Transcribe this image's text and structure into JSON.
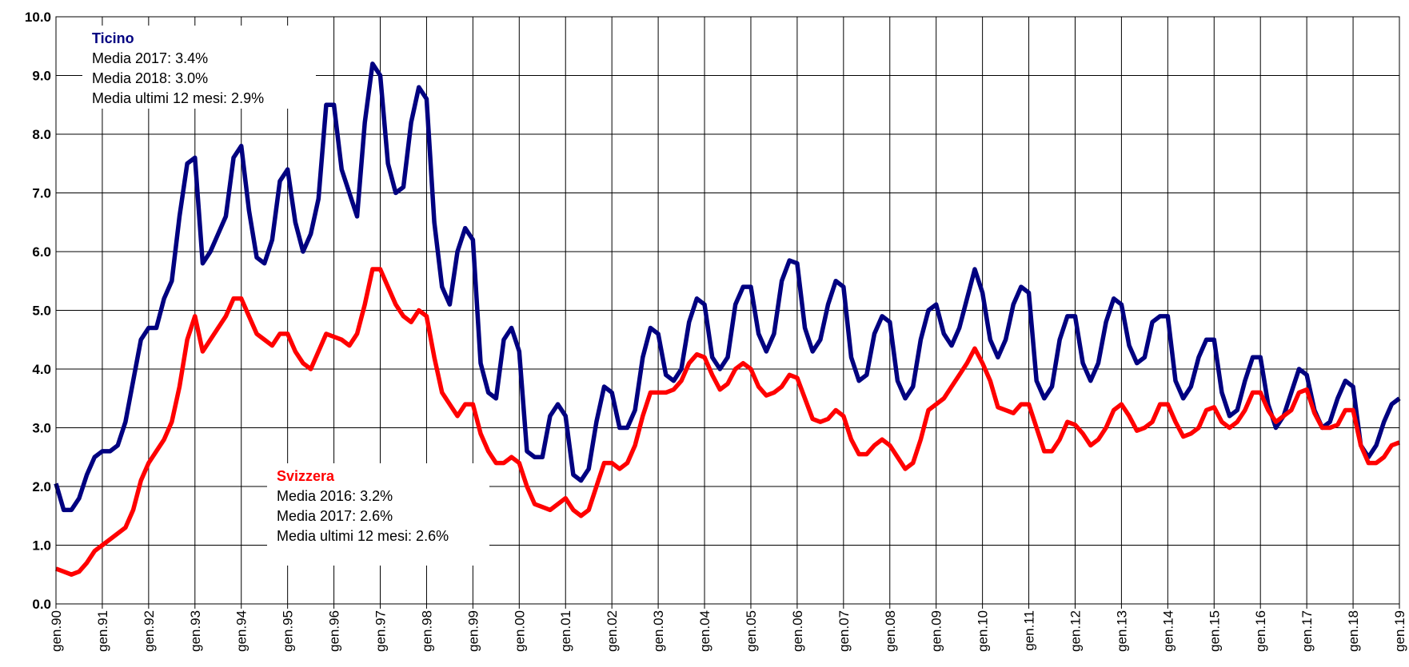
{
  "chart_data": {
    "type": "line",
    "categories": [
      "gen.90",
      null,
      null,
      null,
      null,
      null,
      "gen.91",
      null,
      null,
      null,
      null,
      null,
      "gen.92",
      null,
      null,
      null,
      null,
      null,
      "gen.93",
      null,
      null,
      null,
      null,
      null,
      "gen.94",
      null,
      null,
      null,
      null,
      null,
      "gen.95",
      null,
      null,
      null,
      null,
      null,
      "gen.96",
      null,
      null,
      null,
      null,
      null,
      "gen.97",
      null,
      null,
      null,
      null,
      null,
      "gen.98",
      null,
      null,
      null,
      null,
      null,
      "gen.99",
      null,
      null,
      null,
      null,
      null,
      "gen.00",
      null,
      null,
      null,
      null,
      null,
      "gen.01",
      null,
      null,
      null,
      null,
      null,
      "gen.02",
      null,
      null,
      null,
      null,
      null,
      "gen.03",
      null,
      null,
      null,
      null,
      null,
      "gen.04",
      null,
      null,
      null,
      null,
      null,
      "gen.05",
      null,
      null,
      null,
      null,
      null,
      "gen.06",
      null,
      null,
      null,
      null,
      null,
      "gen.07",
      null,
      null,
      null,
      null,
      null,
      "gen.08",
      null,
      null,
      null,
      null,
      null,
      "gen.09",
      null,
      null,
      null,
      null,
      null,
      "gen.10",
      null,
      null,
      null,
      null,
      null,
      "gen.11",
      null,
      null,
      null,
      null,
      null,
      "gen.12",
      null,
      null,
      null,
      null,
      null,
      "gen.13",
      null,
      null,
      null,
      null,
      null,
      "gen.14",
      null,
      null,
      null,
      null,
      null,
      "gen.15",
      null,
      null,
      null,
      null,
      null,
      "gen.16",
      null,
      null,
      null,
      null,
      null,
      "gen.17",
      null,
      null,
      null,
      null,
      null,
      "gen.18",
      null,
      null,
      null,
      null,
      null,
      "gen.19"
    ],
    "series": [
      {
        "name": "Ticino",
        "color": "#000080",
        "values": [
          2.05,
          1.6,
          1.6,
          1.8,
          2.2,
          2.5,
          2.6,
          2.6,
          2.7,
          3.1,
          3.8,
          4.5,
          4.7,
          4.7,
          5.2,
          5.5,
          6.6,
          7.5,
          7.6,
          5.8,
          6.0,
          6.3,
          6.6,
          7.6,
          7.8,
          6.7,
          5.9,
          5.8,
          6.2,
          7.2,
          7.4,
          6.5,
          6.0,
          6.3,
          6.9,
          8.5,
          8.5,
          7.4,
          7.0,
          6.6,
          8.2,
          9.2,
          9.0,
          7.5,
          7.0,
          7.1,
          8.2,
          8.8,
          8.6,
          6.5,
          5.4,
          5.1,
          6.0,
          6.4,
          6.2,
          4.1,
          3.6,
          3.5,
          4.5,
          4.7,
          4.3,
          2.6,
          2.5,
          2.5,
          3.2,
          3.4,
          3.2,
          2.2,
          2.1,
          2.3,
          3.1,
          3.7,
          3.6,
          3.0,
          3.0,
          3.3,
          4.2,
          4.7,
          4.6,
          3.9,
          3.8,
          4.0,
          4.8,
          5.2,
          5.1,
          4.2,
          4.0,
          4.2,
          5.1,
          5.4,
          5.4,
          4.6,
          4.3,
          4.6,
          5.5,
          5.85,
          5.8,
          4.7,
          4.3,
          4.5,
          5.1,
          5.5,
          5.4,
          4.2,
          3.8,
          3.9,
          4.6,
          4.9,
          4.8,
          3.8,
          3.5,
          3.7,
          4.5,
          5.0,
          5.1,
          4.6,
          4.4,
          4.7,
          5.2,
          5.7,
          5.3,
          4.5,
          4.2,
          4.5,
          5.1,
          5.4,
          5.3,
          3.8,
          3.5,
          3.7,
          4.5,
          4.9,
          4.9,
          4.1,
          3.8,
          4.1,
          4.8,
          5.2,
          5.1,
          4.4,
          4.1,
          4.2,
          4.8,
          4.9,
          4.9,
          3.8,
          3.5,
          3.7,
          4.2,
          4.5,
          4.5,
          3.6,
          3.2,
          3.3,
          3.8,
          4.2,
          4.2,
          3.4,
          3.0,
          3.2,
          3.6,
          4.0,
          3.9,
          3.3,
          3.0,
          3.1,
          3.5,
          3.8,
          3.7,
          2.7,
          2.5,
          2.7,
          3.1,
          3.4,
          3.5
        ]
      },
      {
        "name": "Svizzera",
        "color": "#ff0000",
        "values": [
          0.6,
          0.55,
          0.5,
          0.55,
          0.7,
          0.9,
          1.0,
          1.1,
          1.2,
          1.3,
          1.6,
          2.1,
          2.4,
          2.6,
          2.8,
          3.1,
          3.7,
          4.5,
          4.9,
          4.3,
          4.5,
          4.7,
          4.9,
          5.2,
          5.2,
          4.9,
          4.6,
          4.5,
          4.4,
          4.6,
          4.6,
          4.3,
          4.1,
          4.0,
          4.3,
          4.6,
          4.55,
          4.5,
          4.4,
          4.6,
          5.1,
          5.7,
          5.7,
          5.4,
          5.1,
          4.9,
          4.8,
          5.0,
          4.9,
          4.2,
          3.6,
          3.4,
          3.2,
          3.4,
          3.4,
          2.9,
          2.6,
          2.4,
          2.4,
          2.5,
          2.4,
          2.0,
          1.7,
          1.65,
          1.6,
          1.7,
          1.8,
          1.6,
          1.5,
          1.6,
          2.0,
          2.4,
          2.4,
          2.3,
          2.4,
          2.7,
          3.2,
          3.6,
          3.6,
          3.6,
          3.65,
          3.8,
          4.1,
          4.25,
          4.2,
          3.9,
          3.65,
          3.75,
          4.0,
          4.1,
          4.0,
          3.7,
          3.55,
          3.6,
          3.7,
          3.9,
          3.85,
          3.5,
          3.15,
          3.1,
          3.15,
          3.3,
          3.2,
          2.8,
          2.55,
          2.55,
          2.7,
          2.8,
          2.7,
          2.5,
          2.3,
          2.4,
          2.8,
          3.3,
          3.4,
          3.5,
          3.7,
          3.9,
          4.1,
          4.35,
          4.1,
          3.8,
          3.35,
          3.3,
          3.25,
          3.4,
          3.4,
          3.0,
          2.6,
          2.6,
          2.8,
          3.1,
          3.05,
          2.9,
          2.7,
          2.8,
          3.0,
          3.3,
          3.4,
          3.2,
          2.95,
          3.0,
          3.1,
          3.4,
          3.4,
          3.1,
          2.85,
          2.9,
          3.0,
          3.3,
          3.35,
          3.1,
          3.0,
          3.1,
          3.3,
          3.6,
          3.6,
          3.3,
          3.1,
          3.2,
          3.3,
          3.6,
          3.65,
          3.25,
          3.0,
          3.0,
          3.05,
          3.3,
          3.3,
          2.7,
          2.4,
          2.4,
          2.5,
          2.7,
          2.75
        ]
      }
    ],
    "ylim": [
      0,
      10
    ],
    "yticks": [
      {
        "value": 0,
        "label": "0.0"
      },
      {
        "value": 1,
        "label": "1.0"
      },
      {
        "value": 2,
        "label": "2.0"
      },
      {
        "value": 3,
        "label": "3.0"
      },
      {
        "value": 4,
        "label": "4.0"
      },
      {
        "value": 5,
        "label": "5.0"
      },
      {
        "value": 6,
        "label": "6.0"
      },
      {
        "value": 7,
        "label": "7.0"
      },
      {
        "value": 8,
        "label": "8.0"
      },
      {
        "value": 9,
        "label": "9.0"
      },
      {
        "value": 10,
        "label": "10.0"
      }
    ],
    "grid": true,
    "annotations": [
      {
        "series": 0,
        "lines": [
          "Media 2017: 3.4%",
          "Media 2018: 3.0%",
          "Media ultimi 12 mesi: 2.9%"
        ]
      },
      {
        "series": 1,
        "lines": [
          "Media 2016: 3.2%",
          "Media 2017: 2.6%",
          "Media ultimi 12 mesi: 2.6%"
        ]
      }
    ]
  }
}
